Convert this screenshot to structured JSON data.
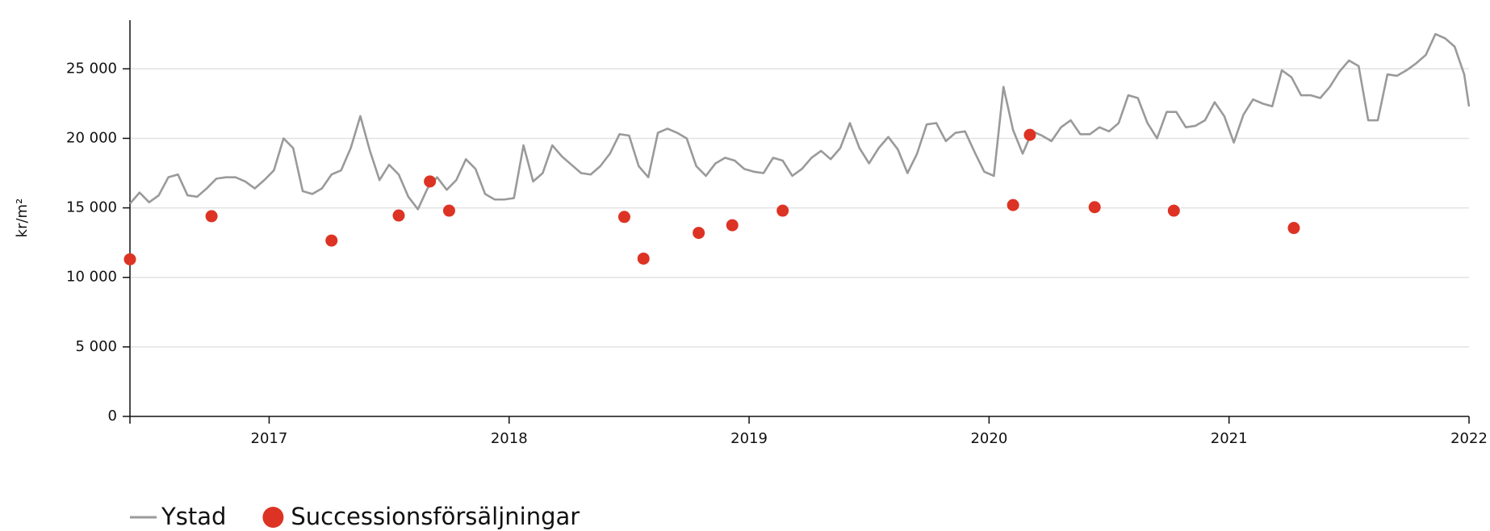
{
  "chart_data": {
    "type": "line",
    "ylabel": "kr/m²",
    "xlim": [
      2016.42,
      2022.0
    ],
    "xticks": [
      2017,
      2018,
      2019,
      2020,
      2021,
      2022
    ],
    "ylim": [
      0,
      28500
    ],
    "yticks": [
      0,
      {
        "value": 5000,
        "label": "5 000"
      },
      {
        "value": 10000,
        "label": "10 000"
      },
      {
        "value": 15000,
        "label": "15 000"
      },
      {
        "value": 20000,
        "label": "20 000"
      },
      {
        "value": 25000,
        "label": "25 000"
      }
    ],
    "grid": true,
    "legend": "bottom-left",
    "series": [
      {
        "name": "Ystad",
        "type": "line",
        "color": "#9a9a9a",
        "x": [
          2016.42,
          2016.46,
          2016.5,
          2016.54,
          2016.58,
          2016.62,
          2016.66,
          2016.7,
          2016.74,
          2016.78,
          2016.82,
          2016.86,
          2016.9,
          2016.94,
          2016.98,
          2017.02,
          2017.06,
          2017.1,
          2017.14,
          2017.18,
          2017.22,
          2017.26,
          2017.3,
          2017.34,
          2017.38,
          2017.42,
          2017.46,
          2017.5,
          2017.54,
          2017.58,
          2017.62,
          2017.66,
          2017.7,
          2017.74,
          2017.78,
          2017.82,
          2017.86,
          2017.9,
          2017.94,
          2017.98,
          2018.02,
          2018.06,
          2018.1,
          2018.14,
          2018.18,
          2018.22,
          2018.26,
          2018.3,
          2018.34,
          2018.38,
          2018.42,
          2018.46,
          2018.5,
          2018.54,
          2018.58,
          2018.62,
          2018.66,
          2018.7,
          2018.74,
          2018.78,
          2018.82,
          2018.86,
          2018.9,
          2018.94,
          2018.98,
          2019.02,
          2019.06,
          2019.1,
          2019.14,
          2019.18,
          2019.22,
          2019.26,
          2019.3,
          2019.34,
          2019.38,
          2019.42,
          2019.46,
          2019.5,
          2019.54,
          2019.58,
          2019.62,
          2019.66,
          2019.7,
          2019.74,
          2019.78,
          2019.82,
          2019.86,
          2019.9,
          2019.94,
          2019.98,
          2020.02,
          2020.06,
          2020.1,
          2020.14,
          2020.18,
          2020.22,
          2020.26,
          2020.3,
          2020.34,
          2020.38,
          2020.42,
          2020.46,
          2020.5,
          2020.54,
          2020.58,
          2020.62,
          2020.66,
          2020.7,
          2020.74,
          2020.78,
          2020.82,
          2020.86,
          2020.9,
          2020.94,
          2020.98,
          2021.02,
          2021.06,
          2021.1,
          2021.14,
          2021.18,
          2021.22,
          2021.26,
          2021.3,
          2021.34,
          2021.38,
          2021.42,
          2021.46,
          2021.5,
          2021.54,
          2021.58,
          2021.62,
          2021.66,
          2021.7,
          2021.74,
          2021.78,
          2021.82,
          2021.86,
          2021.9,
          2021.94,
          2021.98,
          2022.0
        ],
        "values": [
          15300,
          16100,
          15400,
          15900,
          17200,
          17400,
          15900,
          15800,
          16400,
          17100,
          17200,
          17200,
          16900,
          16400,
          17000,
          17700,
          20000,
          19300,
          16200,
          16000,
          16400,
          17400,
          17700,
          19300,
          21600,
          19100,
          17000,
          18100,
          17400,
          15800,
          14900,
          16400,
          17200,
          16300,
          17000,
          18500,
          17800,
          16000,
          15600,
          15600,
          15700,
          19500,
          16900,
          17500,
          19500,
          18700,
          18100,
          17500,
          17400,
          18000,
          18900,
          20300,
          20200,
          18000,
          17200,
          20400,
          20700,
          20400,
          20000,
          18000,
          17300,
          18200,
          18600,
          18400,
          17800,
          17600,
          17500,
          18600,
          18400,
          17300,
          17800,
          18600,
          19100,
          18500,
          19300,
          21100,
          19300,
          18200,
          19300,
          20100,
          19200,
          17500,
          18900,
          21000,
          21100,
          19800,
          20400,
          20500,
          19000,
          17600,
          17300,
          23700,
          20600,
          18900,
          20500,
          20200,
          19800,
          20800,
          21300,
          20300,
          20300,
          20800,
          20500,
          21100,
          23100,
          22900,
          21100,
          20000,
          21900,
          21900,
          20800,
          20900,
          21300,
          22600,
          21600,
          19700,
          21700,
          22800,
          22500,
          22300,
          24900,
          24400,
          23100,
          23100,
          22900,
          23700,
          24800,
          25600,
          25200,
          21300,
          21300,
          24600,
          24500,
          24900,
          25400,
          26000,
          27500,
          27200,
          26600,
          24600,
          22300
        ]
      },
      {
        "name": "Successionsförsäljningar",
        "type": "scatter",
        "color": "#dd3324",
        "x": [
          2016.42,
          2016.76,
          2017.26,
          2017.54,
          2017.67,
          2017.75,
          2018.48,
          2018.56,
          2018.79,
          2018.93,
          2019.14,
          2020.1,
          2020.17,
          2020.44,
          2020.77,
          2021.27
        ],
        "values": [
          11300,
          14400,
          12650,
          14450,
          16900,
          14800,
          14350,
          11350,
          13200,
          13750,
          14800,
          15200,
          20250,
          15050,
          14800,
          13550
        ]
      }
    ]
  }
}
